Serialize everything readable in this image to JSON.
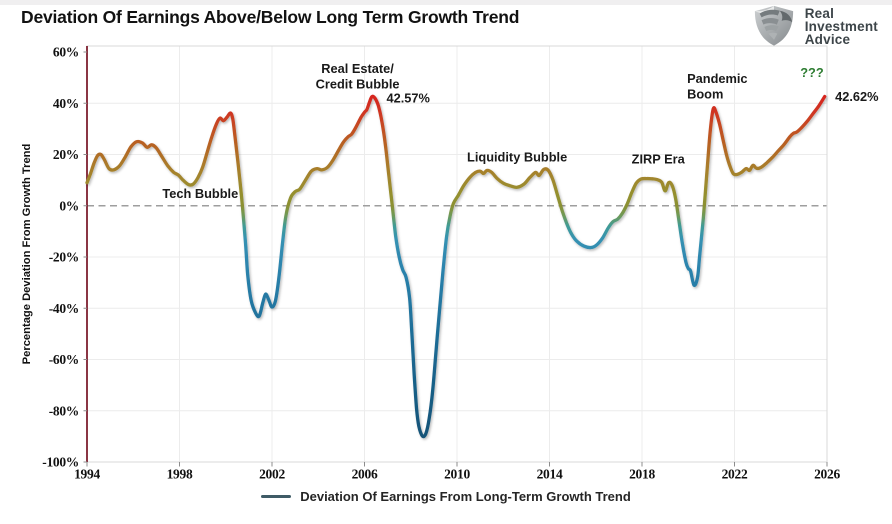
{
  "logo": {
    "icon": "eagle-shield-icon",
    "lines": [
      "Real",
      "Investment",
      "Advice"
    ]
  },
  "chart_data": {
    "type": "line",
    "title": "Deviation Of Earnings Above/Below Long Term Growth Trend",
    "ylabel": "Percentage Deviation From Growth Trend",
    "xlabel": "",
    "xlim": [
      1994,
      2026
    ],
    "ylim": [
      -100,
      60
    ],
    "grid": true,
    "x_ticks": [
      1994,
      1998,
      2002,
      2006,
      2010,
      2014,
      2018,
      2022,
      2026
    ],
    "y_ticks": [
      60,
      40,
      20,
      0,
      -20,
      -40,
      -60,
      -80,
      -100
    ],
    "y_tick_suffix": "%",
    "zero_line": {
      "style": "dashed",
      "color": "#9e9e9e"
    },
    "axis_colors": {
      "y_axis_line": "#7e1f2f",
      "frame": "#d9d9d9",
      "grid": "#ececec",
      "tick": "#8c8c8c"
    },
    "legend": {
      "label": "Deviation Of Earnings From Long-Term Growth Trend",
      "swatch_color": "#3f5b66",
      "position": "bottom-center"
    },
    "color_scale": [
      {
        "value": 60,
        "color": "#d31d1d"
      },
      {
        "value": 44,
        "color": "#d7221f"
      },
      {
        "value": 37,
        "color": "#d03320"
      },
      {
        "value": 30,
        "color": "#c34e20"
      },
      {
        "value": 23,
        "color": "#b56524"
      },
      {
        "value": 16,
        "color": "#aa7b2a"
      },
      {
        "value": 10,
        "color": "#a0882e"
      },
      {
        "value": 4,
        "color": "#93902f"
      },
      {
        "value": 0,
        "color": "#8b9033"
      },
      {
        "value": -4,
        "color": "#6d9a5a"
      },
      {
        "value": -8,
        "color": "#3f9b97"
      },
      {
        "value": -13,
        "color": "#3692b2"
      },
      {
        "value": -20,
        "color": "#2f88b0"
      },
      {
        "value": -32,
        "color": "#277ca6"
      },
      {
        "value": -50,
        "color": "#1e6d97"
      },
      {
        "value": -75,
        "color": "#175c83"
      },
      {
        "value": -100,
        "color": "#124e70"
      }
    ],
    "annotations": [
      {
        "id": "tech-bubble",
        "lines": [
          "Tech Bubble"
        ],
        "x": 1998.9,
        "y": 4.6,
        "align": "middle",
        "color": "#1a1a1a"
      },
      {
        "id": "real-estate-credit-bubble",
        "lines": [
          "Real Estate/",
          "Credit Bubble"
        ],
        "x": 2005.7,
        "y": 53.4,
        "align": "middle",
        "color": "#1a1a1a"
      },
      {
        "id": "peak-2006-value",
        "lines": [
          "42.57%"
        ],
        "x": 2006.95,
        "y": 42.0,
        "align": "start",
        "color": "#1a1a1a"
      },
      {
        "id": "liquidity-bubble",
        "lines": [
          "Liquidity Bubble"
        ],
        "x": 2012.6,
        "y": 19.0,
        "align": "middle",
        "color": "#1a1a1a"
      },
      {
        "id": "zirp-era",
        "lines": [
          "ZIRP Era"
        ],
        "x": 2018.7,
        "y": 18.2,
        "align": "middle",
        "color": "#1a1a1a"
      },
      {
        "id": "pandemic-boom",
        "lines": [
          "Pandemic",
          "Boom"
        ],
        "x": 2019.95,
        "y": 49.5,
        "align": "start",
        "color": "#1a1a1a"
      },
      {
        "id": "question-marks",
        "lines": [
          "???"
        ],
        "x": 2025.35,
        "y": 51.8,
        "align": "middle",
        "color": "#2e7d32"
      },
      {
        "id": "end-value-label",
        "lines": [
          "42.62%"
        ],
        "x": 2026.35,
        "y": 42.6,
        "align": "start",
        "color": "#1a1a1a"
      }
    ],
    "series": [
      {
        "name": "Deviation Of Earnings From Long-Term Growth Trend",
        "points": [
          [
            1994.0,
            9
          ],
          [
            1994.15,
            12.5
          ],
          [
            1994.3,
            16.5
          ],
          [
            1994.45,
            19.5
          ],
          [
            1994.6,
            20
          ],
          [
            1994.75,
            18
          ],
          [
            1994.95,
            14.5
          ],
          [
            1995.15,
            14
          ],
          [
            1995.4,
            15.5
          ],
          [
            1995.65,
            19
          ],
          [
            1995.9,
            23
          ],
          [
            1996.15,
            25
          ],
          [
            1996.4,
            24.5
          ],
          [
            1996.6,
            22.8
          ],
          [
            1996.8,
            23.8
          ],
          [
            1997.0,
            22.5
          ],
          [
            1997.25,
            19
          ],
          [
            1997.5,
            15.5
          ],
          [
            1997.75,
            13
          ],
          [
            1997.95,
            12
          ],
          [
            1998.15,
            10
          ],
          [
            1998.4,
            8.2
          ],
          [
            1998.6,
            8.5
          ],
          [
            1998.8,
            11
          ],
          [
            1999.0,
            15
          ],
          [
            1999.2,
            21
          ],
          [
            1999.4,
            27
          ],
          [
            1999.6,
            32
          ],
          [
            1999.75,
            34.2
          ],
          [
            1999.9,
            33.2
          ],
          [
            2000.05,
            34.5
          ],
          [
            2000.2,
            36.2
          ],
          [
            2000.3,
            34
          ],
          [
            2000.4,
            27
          ],
          [
            2000.55,
            15
          ],
          [
            2000.7,
            2
          ],
          [
            2000.85,
            -14
          ],
          [
            2000.95,
            -27
          ],
          [
            2001.1,
            -37
          ],
          [
            2001.3,
            -42
          ],
          [
            2001.45,
            -43
          ],
          [
            2001.6,
            -38
          ],
          [
            2001.72,
            -34.5
          ],
          [
            2001.85,
            -36.5
          ],
          [
            2002.0,
            -39.5
          ],
          [
            2002.15,
            -37
          ],
          [
            2002.3,
            -28
          ],
          [
            2002.45,
            -15
          ],
          [
            2002.6,
            -4
          ],
          [
            2002.8,
            3
          ],
          [
            2003.0,
            5.5
          ],
          [
            2003.2,
            6.5
          ],
          [
            2003.45,
            10
          ],
          [
            2003.7,
            13.5
          ],
          [
            2003.95,
            14.5
          ],
          [
            2004.15,
            14
          ],
          [
            2004.4,
            15
          ],
          [
            2004.65,
            18
          ],
          [
            2004.9,
            22
          ],
          [
            2005.1,
            25
          ],
          [
            2005.3,
            27
          ],
          [
            2005.45,
            28
          ],
          [
            2005.65,
            31
          ],
          [
            2005.85,
            34.5
          ],
          [
            2006.0,
            36.5
          ],
          [
            2006.1,
            37.5
          ],
          [
            2006.2,
            40
          ],
          [
            2006.32,
            42.57
          ],
          [
            2006.45,
            42
          ],
          [
            2006.6,
            39
          ],
          [
            2006.75,
            33
          ],
          [
            2006.9,
            24
          ],
          [
            2007.05,
            12
          ],
          [
            2007.2,
            0
          ],
          [
            2007.35,
            -12
          ],
          [
            2007.5,
            -20
          ],
          [
            2007.65,
            -25
          ],
          [
            2007.8,
            -28
          ],
          [
            2007.95,
            -36
          ],
          [
            2008.05,
            -50
          ],
          [
            2008.15,
            -66
          ],
          [
            2008.25,
            -79
          ],
          [
            2008.35,
            -86
          ],
          [
            2008.5,
            -89.8
          ],
          [
            2008.65,
            -89
          ],
          [
            2008.8,
            -83
          ],
          [
            2008.95,
            -72
          ],
          [
            2009.1,
            -56
          ],
          [
            2009.25,
            -40
          ],
          [
            2009.4,
            -25
          ],
          [
            2009.55,
            -12
          ],
          [
            2009.7,
            -4
          ],
          [
            2009.85,
            1
          ],
          [
            2010.05,
            4
          ],
          [
            2010.3,
            8
          ],
          [
            2010.55,
            11
          ],
          [
            2010.8,
            13
          ],
          [
            2011.0,
            13.5
          ],
          [
            2011.15,
            12.6
          ],
          [
            2011.3,
            13.8
          ],
          [
            2011.5,
            13
          ],
          [
            2011.75,
            10.5
          ],
          [
            2012.0,
            8.8
          ],
          [
            2012.3,
            7.8
          ],
          [
            2012.6,
            7.2
          ],
          [
            2012.9,
            8.5
          ],
          [
            2013.15,
            11
          ],
          [
            2013.4,
            13
          ],
          [
            2013.55,
            11.8
          ],
          [
            2013.75,
            14.2
          ],
          [
            2013.95,
            13.8
          ],
          [
            2014.15,
            10
          ],
          [
            2014.35,
            4
          ],
          [
            2014.55,
            -2
          ],
          [
            2014.75,
            -7
          ],
          [
            2014.95,
            -11
          ],
          [
            2015.2,
            -14
          ],
          [
            2015.5,
            -15.8
          ],
          [
            2015.8,
            -16.3
          ],
          [
            2016.05,
            -15.2
          ],
          [
            2016.3,
            -12.5
          ],
          [
            2016.55,
            -8.5
          ],
          [
            2016.75,
            -6.2
          ],
          [
            2016.95,
            -5.2
          ],
          [
            2017.15,
            -3
          ],
          [
            2017.35,
            0.5
          ],
          [
            2017.55,
            5
          ],
          [
            2017.75,
            8.8
          ],
          [
            2017.95,
            10.4
          ],
          [
            2018.2,
            10.6
          ],
          [
            2018.45,
            10.5
          ],
          [
            2018.65,
            10.2
          ],
          [
            2018.85,
            9.2
          ],
          [
            2019.0,
            5.8
          ],
          [
            2019.15,
            9
          ],
          [
            2019.3,
            8
          ],
          [
            2019.45,
            3
          ],
          [
            2019.6,
            -6
          ],
          [
            2019.75,
            -15
          ],
          [
            2019.9,
            -22
          ],
          [
            2020.0,
            -24.5
          ],
          [
            2020.1,
            -25.5
          ],
          [
            2020.25,
            -31
          ],
          [
            2020.4,
            -28
          ],
          [
            2020.5,
            -19
          ],
          [
            2020.65,
            -5
          ],
          [
            2020.8,
            12
          ],
          [
            2020.95,
            29
          ],
          [
            2021.08,
            37.8
          ],
          [
            2021.2,
            36.5
          ],
          [
            2021.35,
            32
          ],
          [
            2021.5,
            26
          ],
          [
            2021.65,
            20
          ],
          [
            2021.8,
            15.5
          ],
          [
            2021.95,
            12.5
          ],
          [
            2022.1,
            12.2
          ],
          [
            2022.3,
            13
          ],
          [
            2022.5,
            14.5
          ],
          [
            2022.65,
            13.8
          ],
          [
            2022.8,
            15.8
          ],
          [
            2022.95,
            14.6
          ],
          [
            2023.15,
            15
          ],
          [
            2023.4,
            16.8
          ],
          [
            2023.65,
            19
          ],
          [
            2023.9,
            21.5
          ],
          [
            2024.15,
            24
          ],
          [
            2024.4,
            27
          ],
          [
            2024.55,
            28.3
          ],
          [
            2024.7,
            28.8
          ],
          [
            2024.9,
            30.5
          ],
          [
            2025.15,
            33
          ],
          [
            2025.4,
            36
          ],
          [
            2025.65,
            39
          ],
          [
            2025.9,
            42.62
          ]
        ]
      }
    ]
  }
}
